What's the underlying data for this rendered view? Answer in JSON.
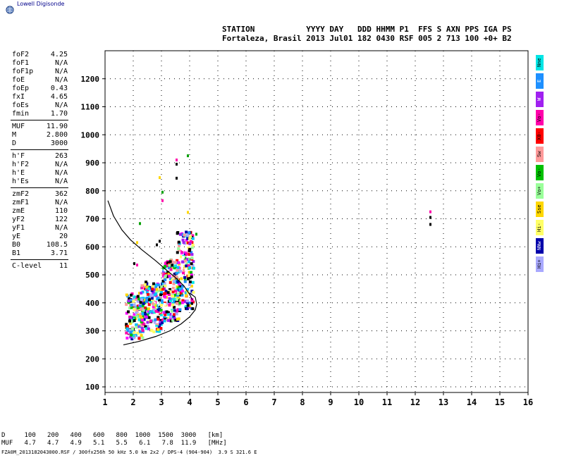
{
  "brand": "Lowell Digisonde",
  "header": {
    "line1": "STATION           YYYY DAY   DDD HHMM P1  FFS S AXN PPS IGA PS",
    "line2": "Fortaleza, Brasil 2013 Jul01 182 0430 RSF 005 2 713 100 +0+ B2"
  },
  "params": [
    {
      "k": "foF2",
      "v": "4.25"
    },
    {
      "k": "foF1",
      "v": "N/A"
    },
    {
      "k": "foF1p",
      "v": "N/A"
    },
    {
      "k": "foE",
      "v": "N/A"
    },
    {
      "k": "foEp",
      "v": "0.43"
    },
    {
      "k": "fxI",
      "v": "4.65"
    },
    {
      "k": "foEs",
      "v": "N/A"
    },
    {
      "k": "fmin",
      "v": "1.70"
    },
    {
      "k": "MUF",
      "v": "11.90"
    },
    {
      "k": "M",
      "v": "2.800"
    },
    {
      "k": "D",
      "v": "3000"
    },
    {
      "k": "h'F",
      "v": "263"
    },
    {
      "k": "h'F2",
      "v": "N/A"
    },
    {
      "k": "h'E",
      "v": "N/A"
    },
    {
      "k": "h'Es",
      "v": "N/A"
    },
    {
      "k": "zmF2",
      "v": "362"
    },
    {
      "k": "zmF1",
      "v": "N/A"
    },
    {
      "k": "zmE",
      "v": "110"
    },
    {
      "k": "yF2",
      "v": "122"
    },
    {
      "k": "yF1",
      "v": "N/A"
    },
    {
      "k": "yE",
      "v": "20"
    },
    {
      "k": "B0",
      "v": "108.5"
    },
    {
      "k": "B1",
      "v": "3.71"
    },
    {
      "k": "C-level",
      "v": "11"
    }
  ],
  "legend": [
    {
      "label": "Nne",
      "color": "#00e5e5"
    },
    {
      "label": "E",
      "color": "#1e90ff"
    },
    {
      "label": "W",
      "color": "#a020f0"
    },
    {
      "label": "Vo-",
      "color": "#ff00aa"
    },
    {
      "label": "X0-",
      "color": "#ff0000"
    },
    {
      "label": "Sw",
      "color": "#ff9a9a"
    },
    {
      "label": "Vo-",
      "color": "#00c000"
    },
    {
      "label": "Vo+",
      "color": "#9aff9a"
    },
    {
      "label": "Sse",
      "color": "#ffd700"
    },
    {
      "label": "Hi-",
      "color": "#ffff66"
    },
    {
      "label": "NNw",
      "color": "#0000aa"
    },
    {
      "label": "Hi+",
      "color": "#a9a9ff"
    }
  ],
  "footer": {
    "d_row": "D     100   200   400   600   800  1000  1500  3000   [km]",
    "muf_row": "MUF   4.7   4.7   4.9   5.1   5.5   6.1   7.8  11.9   [MHz]",
    "file_row": "FZA0M_2013182043000.RSF / 300fx256h 50 kHz 5.0 km 2x2 / DPS-4 (904-904)  3.9 S 321.6 E"
  },
  "chart_data": {
    "type": "scatter",
    "xlim": [
      1,
      16
    ],
    "ylim": [
      80,
      1300
    ],
    "x_ticks": [
      1,
      2,
      3,
      4,
      5,
      6,
      7,
      8,
      9,
      10,
      11,
      12,
      13,
      14,
      15,
      16
    ],
    "y_ticks": [
      100,
      200,
      300,
      400,
      500,
      600,
      700,
      800,
      900,
      1000,
      1100,
      1200
    ],
    "grid": true,
    "clusters": [
      {
        "f_min": 1.7,
        "f_max": 2.3,
        "h_min": 275,
        "h_max": 440,
        "count": 160
      },
      {
        "f_min": 2.2,
        "f_max": 3.0,
        "h_min": 300,
        "h_max": 480,
        "count": 200
      },
      {
        "f_min": 3.0,
        "f_max": 3.6,
        "h_min": 340,
        "h_max": 560,
        "count": 200
      },
      {
        "f_min": 3.5,
        "f_max": 4.1,
        "h_min": 380,
        "h_max": 660,
        "count": 180
      }
    ],
    "sparse_points": [
      {
        "f": 2.0,
        "h": 545
      },
      {
        "f": 2.1,
        "h": 540
      },
      {
        "f": 2.2,
        "h": 688
      },
      {
        "f": 2.1,
        "h": 620
      },
      {
        "f": 2.8,
        "h": 612
      },
      {
        "f": 2.9,
        "h": 625
      },
      {
        "f": 3.0,
        "h": 770
      },
      {
        "f": 3.0,
        "h": 800
      },
      {
        "f": 2.9,
        "h": 852
      },
      {
        "f": 3.5,
        "h": 900
      },
      {
        "f": 3.5,
        "h": 850
      },
      {
        "f": 3.5,
        "h": 915
      },
      {
        "f": 3.9,
        "h": 930
      },
      {
        "f": 3.9,
        "h": 728
      },
      {
        "f": 12.5,
        "h": 710
      },
      {
        "f": 12.5,
        "h": 685
      },
      {
        "f": 12.5,
        "h": 730
      },
      {
        "f": 4.2,
        "h": 650
      }
    ],
    "trace_o": [
      [
        1.1,
        765
      ],
      [
        1.3,
        710
      ],
      [
        1.6,
        660
      ],
      [
        1.9,
        625
      ],
      [
        2.3,
        590
      ],
      [
        2.8,
        550
      ],
      [
        3.2,
        515
      ],
      [
        3.5,
        490
      ],
      [
        3.8,
        460
      ],
      [
        4.0,
        430
      ],
      [
        4.1,
        410
      ]
    ],
    "trace_lower": [
      [
        1.65,
        250
      ],
      [
        2.2,
        262
      ],
      [
        2.8,
        280
      ],
      [
        3.3,
        300
      ],
      [
        3.7,
        325
      ],
      [
        4.0,
        350
      ],
      [
        4.2,
        375
      ],
      [
        4.25,
        395
      ],
      [
        4.2,
        420
      ],
      [
        4.0,
        435
      ]
    ]
  }
}
